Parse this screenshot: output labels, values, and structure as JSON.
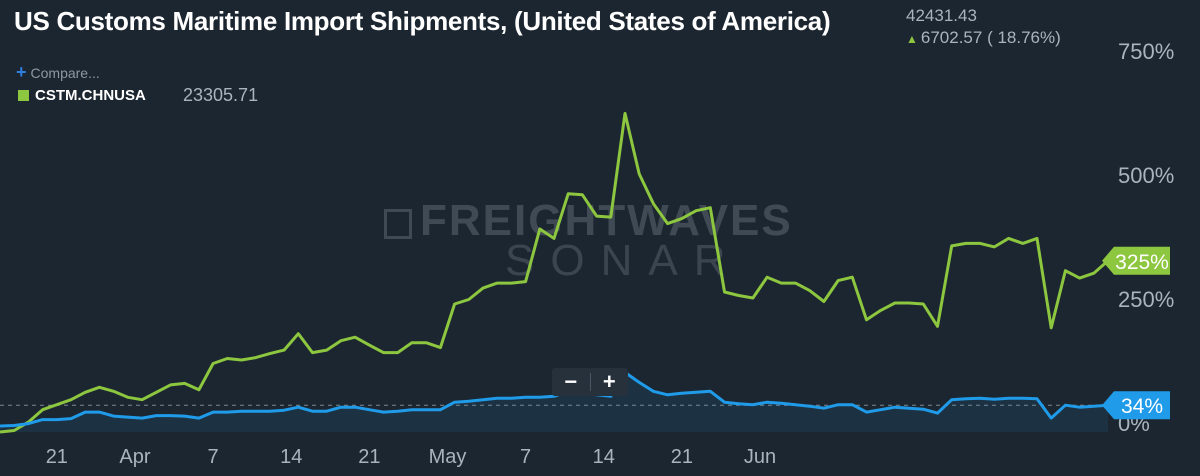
{
  "header": {
    "title": "US Customs Maritime Import Shipments, (United States of America)",
    "value": "42431.43",
    "change": "6702.57 ( 18.76%)"
  },
  "legend": {
    "compare_label": "Compare...",
    "series_name": "CSTM.CHNUSA",
    "series_value": "23305.71"
  },
  "zoom": {
    "minus": "−",
    "plus": "+"
  },
  "watermark": {
    "line1": "FREIGHTWAVES",
    "line2": "SONAR"
  },
  "colors": {
    "background": "#1c2630",
    "green": "#8dc63f",
    "blue": "#1f9be9",
    "axis_text": "#a9b4bd"
  },
  "icons": {
    "change": "up-arrow-icon",
    "compare": "plus-icon"
  },
  "chart_data": {
    "type": "line",
    "ylabel": "",
    "xlabel": "",
    "ylim": [
      -20,
      790
    ],
    "y_ticks": [
      {
        "value": 0,
        "label": "0%"
      },
      {
        "value": 250,
        "label": "250%"
      },
      {
        "value": 500,
        "label": "500%"
      },
      {
        "value": 750,
        "label": "750%"
      }
    ],
    "x_ticks": [
      {
        "x": 8,
        "label": "21"
      },
      {
        "x": 19,
        "label": "Apr"
      },
      {
        "x": 30,
        "label": "7"
      },
      {
        "x": 41,
        "label": "14"
      },
      {
        "x": 52,
        "label": "21"
      },
      {
        "x": 63,
        "label": "May"
      },
      {
        "x": 74,
        "label": "7"
      },
      {
        "x": 85,
        "label": "14"
      },
      {
        "x": 96,
        "label": "21"
      },
      {
        "x": 107,
        "label": "Jun"
      }
    ],
    "baseline": 34,
    "end_labels": [
      {
        "series": 0,
        "label": "325%"
      },
      {
        "series": 1,
        "label": "34%"
      }
    ],
    "series": [
      {
        "color": "#8dc63f",
        "points": [
          [
            0,
            -20
          ],
          [
            2,
            -17
          ],
          [
            4,
            0
          ],
          [
            6,
            25
          ],
          [
            8,
            35
          ],
          [
            10,
            45
          ],
          [
            12,
            60
          ],
          [
            14,
            70
          ],
          [
            16,
            62
          ],
          [
            18,
            50
          ],
          [
            20,
            45
          ],
          [
            22,
            60
          ],
          [
            24,
            75
          ],
          [
            26,
            78
          ],
          [
            28,
            65
          ],
          [
            30,
            118
          ],
          [
            32,
            128
          ],
          [
            34,
            125
          ],
          [
            36,
            130
          ],
          [
            38,
            138
          ],
          [
            40,
            145
          ],
          [
            42,
            178
          ],
          [
            44,
            140
          ],
          [
            46,
            145
          ],
          [
            48,
            164
          ],
          [
            50,
            171
          ],
          [
            52,
            155
          ],
          [
            54,
            140
          ],
          [
            56,
            140
          ],
          [
            58,
            160
          ],
          [
            60,
            160
          ],
          [
            62,
            150
          ],
          [
            64,
            238
          ],
          [
            66,
            247
          ],
          [
            68,
            270
          ],
          [
            70,
            280
          ],
          [
            72,
            280
          ],
          [
            74,
            283
          ],
          [
            76,
            389
          ],
          [
            78,
            370
          ],
          [
            80,
            460
          ],
          [
            82,
            458
          ],
          [
            84,
            415
          ],
          [
            86,
            413
          ],
          [
            88,
            622
          ],
          [
            90,
            500
          ],
          [
            92,
            440
          ],
          [
            94,
            400
          ],
          [
            96,
            410
          ],
          [
            98,
            426
          ],
          [
            100,
            432
          ],
          [
            102,
            262
          ],
          [
            104,
            255
          ],
          [
            106,
            250
          ],
          [
            108,
            292
          ],
          [
            110,
            280
          ],
          [
            112,
            280
          ],
          [
            114,
            265
          ],
          [
            116,
            243
          ],
          [
            118,
            285
          ],
          [
            120,
            292
          ],
          [
            122,
            206
          ],
          [
            124,
            225
          ],
          [
            126,
            240
          ],
          [
            128,
            240
          ],
          [
            130,
            238
          ],
          [
            132,
            193
          ],
          [
            134,
            355
          ],
          [
            136,
            360
          ],
          [
            138,
            360
          ],
          [
            140,
            353
          ],
          [
            142,
            370
          ],
          [
            144,
            360
          ],
          [
            146,
            370
          ],
          [
            148,
            190
          ],
          [
            150,
            305
          ],
          [
            152,
            290
          ],
          [
            154,
            300
          ],
          [
            156,
            325
          ]
        ]
      },
      {
        "color": "#1f9be9",
        "points": [
          [
            0,
            -8
          ],
          [
            2,
            -7
          ],
          [
            4,
            -3
          ],
          [
            6,
            5
          ],
          [
            8,
            5
          ],
          [
            10,
            7
          ],
          [
            12,
            20
          ],
          [
            14,
            20
          ],
          [
            16,
            12
          ],
          [
            18,
            10
          ],
          [
            20,
            8
          ],
          [
            22,
            13
          ],
          [
            24,
            13
          ],
          [
            26,
            12
          ],
          [
            28,
            8
          ],
          [
            30,
            20
          ],
          [
            32,
            20
          ],
          [
            34,
            22
          ],
          [
            36,
            22
          ],
          [
            38,
            22
          ],
          [
            40,
            24
          ],
          [
            42,
            30
          ],
          [
            44,
            22
          ],
          [
            46,
            22
          ],
          [
            48,
            30
          ],
          [
            50,
            30
          ],
          [
            52,
            25
          ],
          [
            54,
            20
          ],
          [
            56,
            22
          ],
          [
            58,
            25
          ],
          [
            60,
            25
          ],
          [
            62,
            25
          ],
          [
            64,
            40
          ],
          [
            66,
            42
          ],
          [
            68,
            45
          ],
          [
            70,
            48
          ],
          [
            72,
            48
          ],
          [
            74,
            50
          ],
          [
            76,
            50
          ],
          [
            78,
            52
          ],
          [
            80,
            62
          ],
          [
            82,
            58
          ],
          [
            84,
            55
          ],
          [
            86,
            52
          ],
          [
            88,
            100
          ],
          [
            90,
            80
          ],
          [
            92,
            62
          ],
          [
            94,
            55
          ],
          [
            96,
            58
          ],
          [
            98,
            60
          ],
          [
            100,
            62
          ],
          [
            102,
            40
          ],
          [
            104,
            37
          ],
          [
            106,
            35
          ],
          [
            108,
            40
          ],
          [
            110,
            38
          ],
          [
            112,
            35
          ],
          [
            114,
            32
          ],
          [
            116,
            28
          ],
          [
            118,
            35
          ],
          [
            120,
            35
          ],
          [
            122,
            20
          ],
          [
            124,
            25
          ],
          [
            126,
            30
          ],
          [
            128,
            28
          ],
          [
            130,
            26
          ],
          [
            132,
            18
          ],
          [
            134,
            45
          ],
          [
            136,
            47
          ],
          [
            138,
            48
          ],
          [
            140,
            46
          ],
          [
            142,
            48
          ],
          [
            144,
            48
          ],
          [
            146,
            47
          ],
          [
            148,
            8
          ],
          [
            150,
            34
          ],
          [
            152,
            30
          ],
          [
            154,
            32
          ],
          [
            156,
            34
          ]
        ]
      }
    ]
  }
}
